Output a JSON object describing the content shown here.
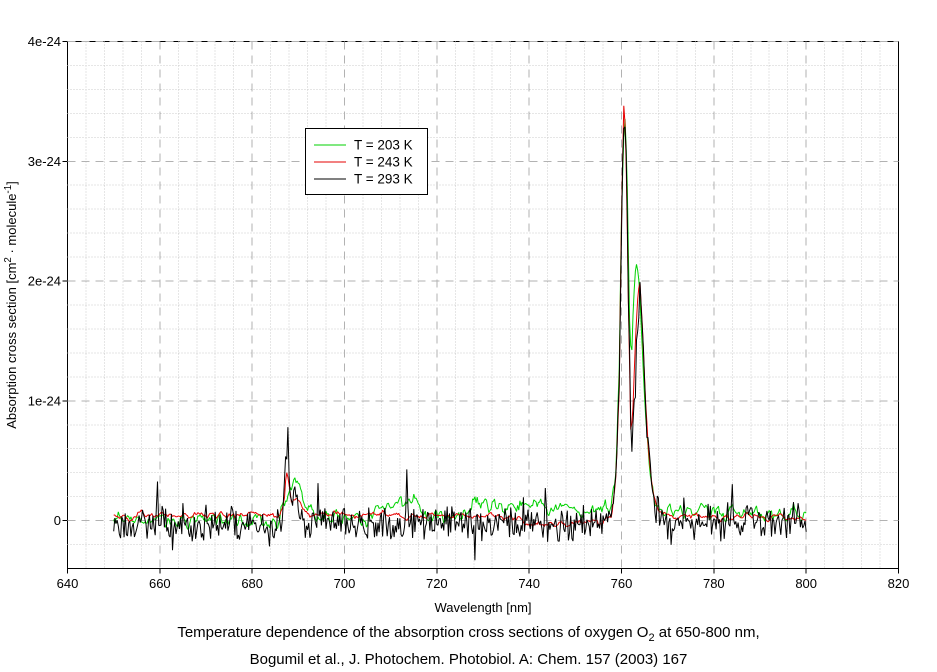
{
  "caption": {
    "line1_parts": [
      {
        "t": "Temperature dependence of the absorption cross sections of oxygen O"
      },
      {
        "t": "2",
        "style": "sub"
      },
      {
        "t": " at 650-800 nm,"
      }
    ],
    "line2": "Bogumil et al., J. Photochem. Photobiol. A: Chem. 157 (2003) 167"
  },
  "chart_data": {
    "type": "line",
    "title": "",
    "xlabel": "Wavelength [nm]",
    "ylabel_parts": [
      {
        "t": "Absorption cross section [cm"
      },
      {
        "t": "2",
        "style": "sup"
      },
      {
        "t": " · molecule"
      },
      {
        "t": "-1",
        "style": "sup"
      },
      {
        "t": "]"
      }
    ],
    "ylabel_plain": "Absorption cross section [cm2 · molecule-1]",
    "xlim": [
      640,
      820
    ],
    "ylim": [
      -0.4,
      4
    ],
    "y_value_unit": "1e-24",
    "x_ticks": [
      {
        "v": 640,
        "label": "640"
      },
      {
        "v": 660,
        "label": "660"
      },
      {
        "v": 680,
        "label": "680"
      },
      {
        "v": 700,
        "label": "700"
      },
      {
        "v": 720,
        "label": "720"
      },
      {
        "v": 740,
        "label": "740"
      },
      {
        "v": 760,
        "label": "760"
      },
      {
        "v": 780,
        "label": "780"
      },
      {
        "v": 800,
        "label": "800"
      },
      {
        "v": 820,
        "label": "820"
      }
    ],
    "y_ticks": [
      {
        "v": 0,
        "label": "0"
      },
      {
        "v": 1,
        "label": "1e-24"
      },
      {
        "v": 2,
        "label": "2e-24"
      },
      {
        "v": 3,
        "label": "3e-24"
      },
      {
        "v": 4,
        "label": "4e-24"
      }
    ],
    "x_minor_step": 4,
    "y_minor_step": 0.2,
    "grid": {
      "major_color": "#b2b2b2",
      "minor_color": "#cccccc"
    },
    "legend_position": "upper-left-of-center",
    "data_x_range": [
      650,
      800
    ],
    "sample_step_nm": 0.25,
    "series": [
      {
        "name": "T = 203 K",
        "color": "#00d200",
        "noise_amp": 0.085,
        "smooth": 3,
        "spike_prob": 0.02,
        "spike_amp": 0.09,
        "seed": 7,
        "envelope": [
          [
            650,
            0.0
          ],
          [
            685.5,
            0.0
          ],
          [
            686.8,
            0.06
          ],
          [
            688,
            0.22
          ],
          [
            689.3,
            0.33
          ],
          [
            690.5,
            0.26
          ],
          [
            691.8,
            0.12
          ],
          [
            693.5,
            0.05
          ],
          [
            696,
            0.03
          ],
          [
            700,
            0.03
          ],
          [
            704,
            0.04
          ],
          [
            707,
            0.07
          ],
          [
            710,
            0.14
          ],
          [
            713,
            0.17
          ],
          [
            715,
            0.13
          ],
          [
            717.5,
            0.06
          ],
          [
            720,
            0.04
          ],
          [
            723,
            0.05
          ],
          [
            726,
            0.1
          ],
          [
            729,
            0.14
          ],
          [
            732,
            0.13
          ],
          [
            735,
            0.11
          ],
          [
            737.5,
            0.13
          ],
          [
            740,
            0.16
          ],
          [
            742.5,
            0.14
          ],
          [
            745,
            0.12
          ],
          [
            747.5,
            0.1
          ],
          [
            750,
            0.08
          ],
          [
            753,
            0.09
          ],
          [
            756,
            0.1
          ],
          [
            757.8,
            0.12
          ],
          [
            758.8,
            0.45
          ],
          [
            759.5,
            1.2
          ],
          [
            760.1,
            2.7
          ],
          [
            760.7,
            3.42
          ],
          [
            761.2,
            2.9
          ],
          [
            761.8,
            1.6
          ],
          [
            762.2,
            1.35
          ],
          [
            762.6,
            1.8
          ],
          [
            763.1,
            2.15
          ],
          [
            763.9,
            1.95
          ],
          [
            764.6,
            1.4
          ],
          [
            765.3,
            0.85
          ],
          [
            766.1,
            0.42
          ],
          [
            767,
            0.2
          ],
          [
            768,
            0.12
          ],
          [
            770,
            0.1
          ],
          [
            773,
            0.08
          ],
          [
            776,
            0.1
          ],
          [
            779,
            0.09
          ],
          [
            782,
            0.07
          ],
          [
            786,
            0.06
          ],
          [
            790,
            0.07
          ],
          [
            794,
            0.06
          ],
          [
            800,
            0.05
          ]
        ]
      },
      {
        "name": "T = 243 K",
        "color": "#e60000",
        "noise_amp": 0.055,
        "smooth": 5,
        "spike_prob": 0.01,
        "spike_amp": 0.05,
        "seed": 101,
        "envelope": [
          [
            650,
            0.05
          ],
          [
            660,
            0.05
          ],
          [
            670,
            0.05
          ],
          [
            680,
            0.05
          ],
          [
            686,
            0.06
          ],
          [
            686.9,
            0.15
          ],
          [
            687.4,
            0.42
          ],
          [
            687.9,
            0.32
          ],
          [
            688.5,
            0.14
          ],
          [
            689.3,
            0.17
          ],
          [
            690.3,
            0.16
          ],
          [
            691.3,
            0.1
          ],
          [
            692.5,
            0.07
          ],
          [
            695,
            0.05
          ],
          [
            700,
            0.05
          ],
          [
            705,
            0.05
          ],
          [
            710,
            0.05
          ],
          [
            715,
            0.04
          ],
          [
            720,
            0.04
          ],
          [
            725,
            0.04
          ],
          [
            730,
            0.04
          ],
          [
            734,
            0.03
          ],
          [
            738,
            0.01
          ],
          [
            741,
            -0.02
          ],
          [
            745,
            -0.03
          ],
          [
            749,
            -0.03
          ],
          [
            753,
            -0.02
          ],
          [
            756,
            0.0
          ],
          [
            757.8,
            0.05
          ],
          [
            758.8,
            0.4
          ],
          [
            759.5,
            1.1
          ],
          [
            760.1,
            2.8
          ],
          [
            760.55,
            3.55
          ],
          [
            761,
            3.0
          ],
          [
            761.5,
            1.8
          ],
          [
            762,
            0.75
          ],
          [
            762.4,
            0.85
          ],
          [
            763,
            1.5
          ],
          [
            763.6,
            1.95
          ],
          [
            764,
            2.0
          ],
          [
            764.5,
            1.65
          ],
          [
            765.1,
            1.1
          ],
          [
            765.8,
            0.6
          ],
          [
            766.6,
            0.28
          ],
          [
            767.6,
            0.12
          ],
          [
            768.6,
            0.06
          ],
          [
            772,
            0.04
          ],
          [
            778,
            0.04
          ],
          [
            784,
            0.03
          ],
          [
            790,
            0.03
          ],
          [
            795,
            0.04
          ],
          [
            800,
            0.03
          ]
        ]
      },
      {
        "name": "T = 293 K",
        "color": "#000000",
        "noise_amp": 0.105,
        "smooth": 1,
        "spike_prob": 0.05,
        "spike_amp": 0.2,
        "seed": 23,
        "envelope": [
          [
            650,
            -0.02
          ],
          [
            660,
            -0.02
          ],
          [
            670,
            -0.02
          ],
          [
            680,
            -0.02
          ],
          [
            684.5,
            -0.05
          ],
          [
            686.3,
            0.0
          ],
          [
            687.2,
            0.52
          ],
          [
            687.8,
            0.38
          ],
          [
            688.3,
            0.12
          ],
          [
            689,
            0.14
          ],
          [
            689.8,
            0.1
          ],
          [
            690.8,
            0.03
          ],
          [
            693,
            -0.02
          ],
          [
            698,
            -0.02
          ],
          [
            703,
            -0.03
          ],
          [
            708,
            -0.02
          ],
          [
            713,
            -0.03
          ],
          [
            718,
            -0.02
          ],
          [
            723,
            -0.03
          ],
          [
            728,
            -0.02
          ],
          [
            733,
            -0.03
          ],
          [
            738,
            -0.02
          ],
          [
            743,
            -0.03
          ],
          [
            748,
            -0.03
          ],
          [
            752,
            -0.02
          ],
          [
            755,
            -0.02
          ],
          [
            757.5,
            0.04
          ],
          [
            758.7,
            0.3
          ],
          [
            759.5,
            1.15
          ],
          [
            760.1,
            2.8
          ],
          [
            760.65,
            3.48
          ],
          [
            761.1,
            3.0
          ],
          [
            761.6,
            1.9
          ],
          [
            762.1,
            0.55
          ],
          [
            762.5,
            0.8
          ],
          [
            763,
            1.35
          ],
          [
            763.6,
            1.8
          ],
          [
            764.1,
            1.9
          ],
          [
            764.6,
            1.55
          ],
          [
            765.2,
            1.0
          ],
          [
            765.9,
            0.58
          ],
          [
            766.7,
            0.26
          ],
          [
            767.6,
            0.1
          ],
          [
            768.6,
            0.0
          ],
          [
            772,
            -0.02
          ],
          [
            776,
            -0.03
          ],
          [
            780,
            -0.02
          ],
          [
            785,
            -0.03
          ],
          [
            790,
            0.0
          ],
          [
            794,
            0.02
          ],
          [
            800,
            -0.02
          ]
        ]
      }
    ]
  }
}
